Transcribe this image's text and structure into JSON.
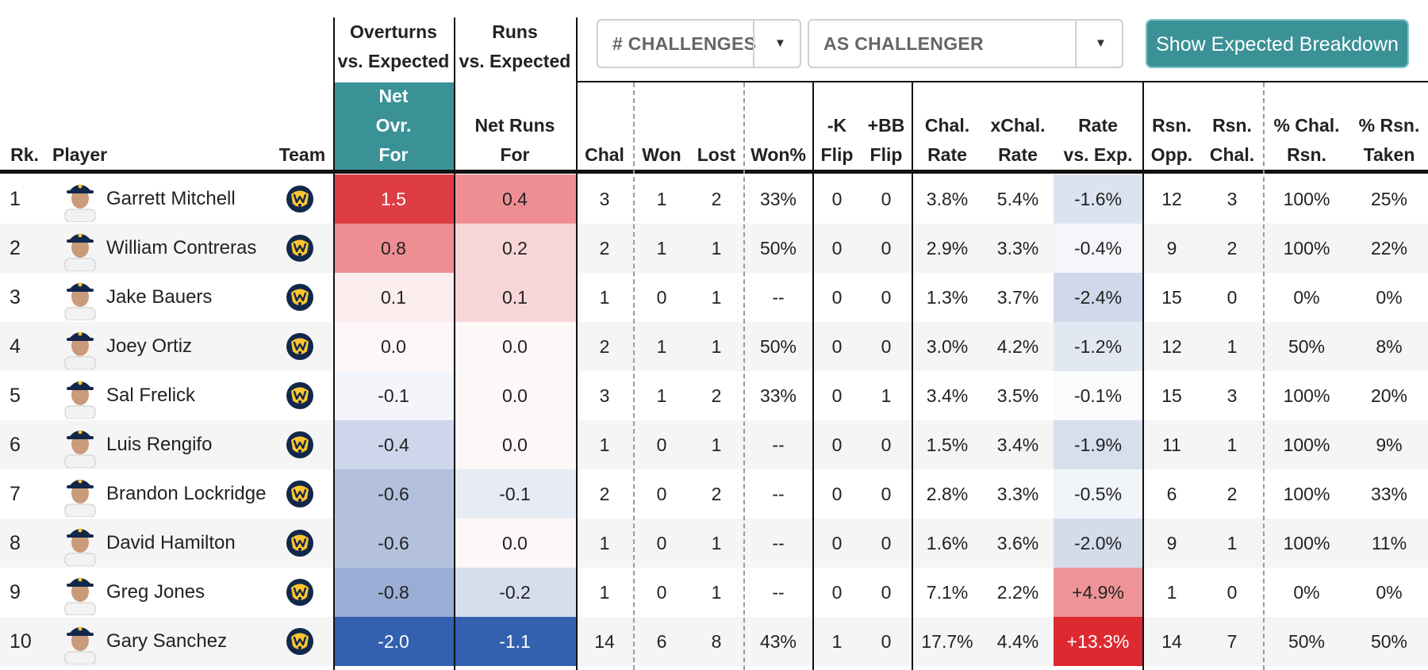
{
  "group_headers": {
    "overturns": "Overturns\nvs. Expected",
    "runs": "Runs\nvs. Expected"
  },
  "controls": {
    "metric_dropdown": "# CHALLENGES",
    "role_dropdown": "AS CHALLENGER",
    "breakdown_button": "Show Expected Breakdown"
  },
  "columns": {
    "rank": "Rk.",
    "player": "Player",
    "team": "Team",
    "net_ovr": "Net\nOvr.\nFor",
    "net_runs": "Net Runs\nFor",
    "chal": "Chal",
    "won": "Won",
    "lost": "Lost",
    "won_pct": "Won%",
    "k_flip": "-K\nFlip",
    "bb_flip": "+BB\nFlip",
    "chal_rate": "Chal.\nRate",
    "xchal_rate": "xChal.\nRate",
    "rate_vs_exp": "Rate\nvs. Exp.",
    "rsn_opp": "Rsn.\nOpp.",
    "rsn_chal": "Rsn.\nChal.",
    "pct_chal_rsn": "% Chal.\nRsn.",
    "pct_rsn_taken": "% Rsn.\nTaken"
  },
  "colors": {
    "teal": "#3a9196",
    "team_logo_navy": "#12284b",
    "team_logo_gold": "#ffc52f"
  },
  "team_logo_icon": "brewers-glove-logo-icon",
  "rows": [
    {
      "rank": "1",
      "player": "Garrett Mitchell",
      "net_ovr": "1.5",
      "net_runs": "0.4",
      "chal": "3",
      "won": "1",
      "lost": "2",
      "won_pct": "33%",
      "k_flip": "0",
      "bb_flip": "0",
      "chal_rate": "3.8%",
      "xchal_rate": "5.4%",
      "rate_vs_exp": "-1.6%",
      "rsn_opp": "12",
      "rsn_chal": "3",
      "pct_chal_rsn": "100%",
      "pct_rsn_taken": "25%",
      "colors": {
        "net_ovr": "#dd3d43",
        "net_runs": "#ee8e92",
        "rate_vs_exp": "#dce3f0"
      }
    },
    {
      "rank": "2",
      "player": "William Contreras",
      "net_ovr": "0.8",
      "net_runs": "0.2",
      "chal": "2",
      "won": "1",
      "lost": "1",
      "won_pct": "50%",
      "k_flip": "0",
      "bb_flip": "0",
      "chal_rate": "2.9%",
      "xchal_rate": "3.3%",
      "rate_vs_exp": "-0.4%",
      "rsn_opp": "9",
      "rsn_chal": "2",
      "pct_chal_rsn": "100%",
      "pct_rsn_taken": "22%",
      "colors": {
        "net_ovr": "#ee8e92",
        "net_runs": "#f8d6d8",
        "rate_vs_exp": "#f4f6fa"
      }
    },
    {
      "rank": "3",
      "player": "Jake Bauers",
      "net_ovr": "0.1",
      "net_runs": "0.1",
      "chal": "1",
      "won": "0",
      "lost": "1",
      "won_pct": "--",
      "k_flip": "0",
      "bb_flip": "0",
      "chal_rate": "1.3%",
      "xchal_rate": "3.7%",
      "rate_vs_exp": "-2.4%",
      "rsn_opp": "15",
      "rsn_chal": "0",
      "pct_chal_rsn": "0%",
      "pct_rsn_taken": "0%",
      "colors": {
        "net_ovr": "#fcedee",
        "net_runs": "#f8d6d8",
        "rate_vs_exp": "#d0d9ea"
      }
    },
    {
      "rank": "4",
      "player": "Joey Ortiz",
      "net_ovr": "0.0",
      "net_runs": "0.0",
      "chal": "2",
      "won": "1",
      "lost": "1",
      "won_pct": "50%",
      "k_flip": "0",
      "bb_flip": "0",
      "chal_rate": "3.0%",
      "xchal_rate": "4.2%",
      "rate_vs_exp": "-1.2%",
      "rsn_opp": "12",
      "rsn_chal": "1",
      "pct_chal_rsn": "50%",
      "pct_rsn_taken": "8%",
      "colors": {
        "net_ovr": "#fdf7f7",
        "net_runs": "#fdf7f7",
        "rate_vs_exp": "#e2e8f2"
      }
    },
    {
      "rank": "5",
      "player": "Sal Frelick",
      "net_ovr": "-0.1",
      "net_runs": "0.0",
      "chal": "3",
      "won": "1",
      "lost": "2",
      "won_pct": "33%",
      "k_flip": "0",
      "bb_flip": "1",
      "chal_rate": "3.4%",
      "xchal_rate": "3.5%",
      "rate_vs_exp": "-0.1%",
      "rsn_opp": "15",
      "rsn_chal": "3",
      "pct_chal_rsn": "100%",
      "pct_rsn_taken": "20%",
      "colors": {
        "net_ovr": "#f3f5fa",
        "net_runs": "#fdf7f7",
        "rate_vs_exp": "#fafbfd"
      }
    },
    {
      "rank": "6",
      "player": "Luis Rengifo",
      "net_ovr": "-0.4",
      "net_runs": "0.0",
      "chal": "1",
      "won": "0",
      "lost": "1",
      "won_pct": "--",
      "k_flip": "0",
      "bb_flip": "0",
      "chal_rate": "1.5%",
      "xchal_rate": "3.4%",
      "rate_vs_exp": "-1.9%",
      "rsn_opp": "11",
      "rsn_chal": "1",
      "pct_chal_rsn": "100%",
      "pct_rsn_taken": "9%",
      "colors": {
        "net_ovr": "#cdd6ea",
        "net_runs": "#fdf7f7",
        "rate_vs_exp": "#d7dfed"
      }
    },
    {
      "rank": "7",
      "player": "Brandon Lockridge",
      "net_ovr": "-0.6",
      "net_runs": "-0.1",
      "chal": "2",
      "won": "0",
      "lost": "2",
      "won_pct": "--",
      "k_flip": "0",
      "bb_flip": "0",
      "chal_rate": "2.8%",
      "xchal_rate": "3.3%",
      "rate_vs_exp": "-0.5%",
      "rsn_opp": "6",
      "rsn_chal": "2",
      "pct_chal_rsn": "100%",
      "pct_rsn_taken": "33%",
      "colors": {
        "net_ovr": "#b3c1de",
        "net_runs": "#e6ebf4",
        "rate_vs_exp": "#f1f4f9"
      }
    },
    {
      "rank": "8",
      "player": "David Hamilton",
      "net_ovr": "-0.6",
      "net_runs": "0.0",
      "chal": "1",
      "won": "0",
      "lost": "1",
      "won_pct": "--",
      "k_flip": "0",
      "bb_flip": "0",
      "chal_rate": "1.6%",
      "xchal_rate": "3.6%",
      "rate_vs_exp": "-2.0%",
      "rsn_opp": "9",
      "rsn_chal": "1",
      "pct_chal_rsn": "100%",
      "pct_rsn_taken": "11%",
      "colors": {
        "net_ovr": "#b3c1de",
        "net_runs": "#fdf7f7",
        "rate_vs_exp": "#d4dcec"
      }
    },
    {
      "rank": "9",
      "player": "Greg Jones",
      "net_ovr": "-0.8",
      "net_runs": "-0.2",
      "chal": "1",
      "won": "0",
      "lost": "1",
      "won_pct": "--",
      "k_flip": "0",
      "bb_flip": "0",
      "chal_rate": "7.1%",
      "xchal_rate": "2.2%",
      "rate_vs_exp": "+4.9%",
      "rsn_opp": "1",
      "rsn_chal": "0",
      "pct_chal_rsn": "0%",
      "pct_rsn_taken": "0%",
      "colors": {
        "net_ovr": "#9aadd4",
        "net_runs": "#d6deed",
        "rate_vs_exp": "#ee9498"
      }
    },
    {
      "rank": "10",
      "player": "Gary Sanchez",
      "net_ovr": "-2.0",
      "net_runs": "-1.1",
      "chal": "14",
      "won": "6",
      "lost": "8",
      "won_pct": "43%",
      "k_flip": "1",
      "bb_flip": "0",
      "chal_rate": "17.7%",
      "xchal_rate": "4.4%",
      "rate_vs_exp": "+13.3%",
      "rsn_opp": "14",
      "rsn_chal": "7",
      "pct_chal_rsn": "50%",
      "pct_rsn_taken": "50%",
      "colors": {
        "net_ovr": "#3460b0",
        "net_runs": "#3460b0",
        "rate_vs_exp": "#dd2a30"
      }
    }
  ]
}
